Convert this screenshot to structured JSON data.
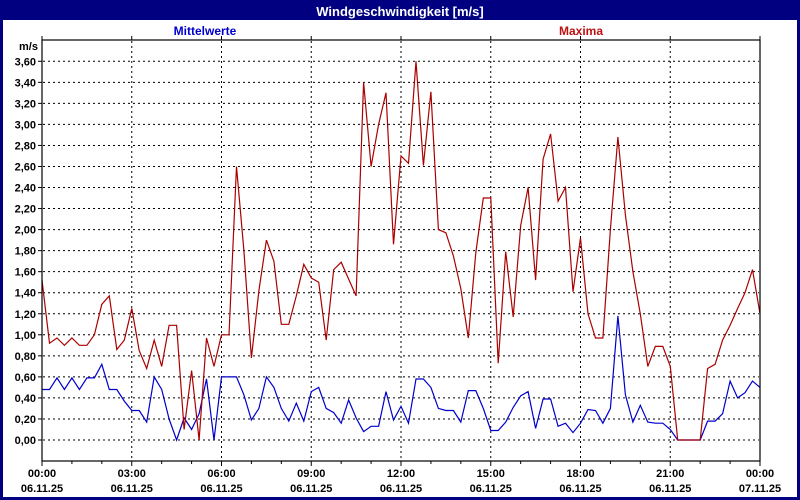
{
  "window": {
    "title": "Windgeschwindigkeit [m/s]"
  },
  "legend": {
    "mean_label": "Mittelwerte",
    "max_label": "Maxima"
  },
  "colors": {
    "frame": "#000080",
    "titlebar_bg": "#000080",
    "titlebar_text": "#ffffff",
    "background": "#ffffff",
    "grid": "#000000",
    "axis": "#000000",
    "mean_line": "#0000cc",
    "max_line": "#aa0000"
  },
  "chart_data": {
    "type": "line",
    "title": "Windgeschwindigkeit [m/s]",
    "ylabel": "m/s",
    "ylim": [
      -0.2,
      3.8
    ],
    "ytick_step": 0.2,
    "ytick_labels": [
      "0,00",
      "0,20",
      "0,40",
      "0,60",
      "0,80",
      "1,00",
      "1,20",
      "1,40",
      "1,60",
      "1,80",
      "2,00",
      "2,20",
      "2,40",
      "2,60",
      "2,80",
      "3,00",
      "3,20",
      "3,40",
      "3,60"
    ],
    "x_hours_range": [
      0,
      24
    ],
    "xtick_every_hours": 3,
    "xticks": [
      {
        "time": "00:00",
        "date": "06.11.25"
      },
      {
        "time": "03:00",
        "date": "06.11.25"
      },
      {
        "time": "06:00",
        "date": "06.11.25"
      },
      {
        "time": "09:00",
        "date": "06.11.25"
      },
      {
        "time": "12:00",
        "date": "06.11.25"
      },
      {
        "time": "15:00",
        "date": "06.11.25"
      },
      {
        "time": "18:00",
        "date": "06.11.25"
      },
      {
        "time": "21:00",
        "date": "06.11.25"
      },
      {
        "time": "00:00",
        "date": "07.11.25"
      }
    ],
    "grid": "dashed",
    "legend_position": "top",
    "sample_interval_minutes": 15,
    "series": [
      {
        "name": "Mittelwerte",
        "color": "#0000cc",
        "values": [
          0.48,
          0.48,
          0.59,
          0.48,
          0.59,
          0.48,
          0.59,
          0.59,
          0.72,
          0.48,
          0.48,
          0.37,
          0.28,
          0.28,
          0.17,
          0.6,
          0.48,
          0.2,
          0.0,
          0.21,
          0.1,
          0.25,
          0.58,
          0.0,
          0.6,
          0.6,
          0.6,
          0.43,
          0.19,
          0.3,
          0.6,
          0.5,
          0.3,
          0.18,
          0.35,
          0.18,
          0.46,
          0.5,
          0.3,
          0.26,
          0.16,
          0.38,
          0.21,
          0.08,
          0.13,
          0.13,
          0.46,
          0.19,
          0.32,
          0.16,
          0.58,
          0.58,
          0.5,
          0.3,
          0.28,
          0.28,
          0.17,
          0.47,
          0.47,
          0.3,
          0.09,
          0.09,
          0.17,
          0.31,
          0.42,
          0.46,
          0.11,
          0.39,
          0.39,
          0.13,
          0.16,
          0.07,
          0.16,
          0.29,
          0.28,
          0.16,
          0.3,
          1.18,
          0.43,
          0.17,
          0.33,
          0.17,
          0.16,
          0.16,
          0.1,
          0.0,
          0.0,
          0.0,
          0.0,
          0.18,
          0.18,
          0.25,
          0.56,
          0.4,
          0.45,
          0.56,
          0.5
        ]
      },
      {
        "name": "Maxima",
        "color": "#aa0000",
        "values": [
          1.52,
          0.92,
          0.97,
          0.9,
          0.97,
          0.9,
          0.9,
          1.0,
          1.29,
          1.37,
          0.86,
          0.95,
          1.25,
          0.85,
          0.68,
          0.95,
          0.7,
          1.09,
          1.09,
          0.1,
          0.66,
          0.0,
          0.97,
          0.7,
          1.0,
          1.0,
          2.6,
          1.8,
          0.78,
          1.42,
          1.9,
          1.7,
          1.1,
          1.1,
          1.37,
          1.67,
          1.54,
          1.5,
          0.95,
          1.62,
          1.69,
          1.53,
          1.37,
          3.4,
          2.6,
          3.0,
          3.3,
          1.86,
          2.7,
          2.63,
          3.6,
          2.61,
          3.31,
          2.0,
          1.97,
          1.75,
          1.44,
          0.97,
          1.78,
          2.3,
          2.3,
          0.73,
          1.79,
          1.17,
          2.04,
          2.4,
          1.52,
          2.67,
          2.91,
          2.27,
          2.4,
          1.41,
          1.92,
          1.2,
          0.97,
          0.97,
          2.0,
          2.88,
          2.14,
          1.6,
          1.2,
          0.7,
          0.89,
          0.89,
          0.7,
          0.0,
          0.0,
          0.0,
          0.0,
          0.68,
          0.72,
          0.95,
          1.09,
          1.25,
          1.4,
          1.62,
          1.2
        ]
      }
    ]
  }
}
